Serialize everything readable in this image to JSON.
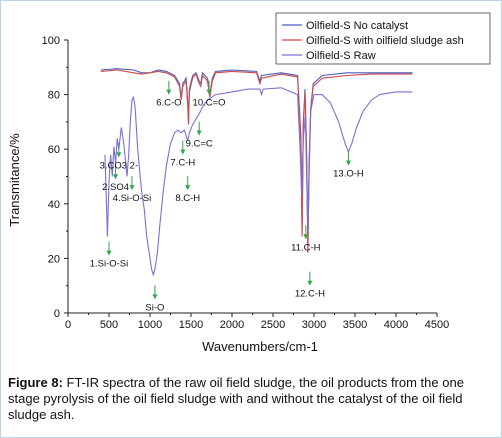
{
  "chart_data": {
    "type": "line",
    "xlabel": "Wavenumbers/cm-1",
    "ylabel": "Transmitance/%",
    "xlim": [
      0,
      4500
    ],
    "ylim": [
      0,
      100
    ],
    "xticks": [
      0,
      500,
      1000,
      1500,
      2000,
      2500,
      3000,
      3500,
      4000,
      4500
    ],
    "yticks": [
      0,
      20,
      40,
      60,
      80,
      100
    ],
    "grid": false,
    "legend_position": "top-right",
    "series": [
      {
        "name": "Oilfield-S No catalyst",
        "color": "#4a5fc1",
        "points": [
          [
            400,
            89
          ],
          [
            600,
            89.5
          ],
          [
            800,
            89
          ],
          [
            900,
            88
          ],
          [
            1000,
            88
          ],
          [
            1100,
            89
          ],
          [
            1200,
            88.5
          ],
          [
            1300,
            87
          ],
          [
            1360,
            84
          ],
          [
            1380,
            79
          ],
          [
            1400,
            84
          ],
          [
            1440,
            86
          ],
          [
            1460,
            78
          ],
          [
            1470,
            70
          ],
          [
            1480,
            82
          ],
          [
            1520,
            87
          ],
          [
            1560,
            88
          ],
          [
            1600,
            85
          ],
          [
            1620,
            84
          ],
          [
            1640,
            88
          ],
          [
            1700,
            86
          ],
          [
            1730,
            80
          ],
          [
            1760,
            86
          ],
          [
            1800,
            88.5
          ],
          [
            2000,
            89
          ],
          [
            2300,
            88.5
          ],
          [
            2340,
            85
          ],
          [
            2360,
            87
          ],
          [
            2600,
            88
          ],
          [
            2800,
            87
          ],
          [
            2840,
            65
          ],
          [
            2855,
            30
          ],
          [
            2870,
            70
          ],
          [
            2890,
            82
          ],
          [
            2910,
            60
          ],
          [
            2925,
            24
          ],
          [
            2940,
            55
          ],
          [
            2960,
            75
          ],
          [
            2990,
            84
          ],
          [
            3100,
            87
          ],
          [
            3400,
            88
          ],
          [
            3700,
            88
          ],
          [
            4000,
            88
          ],
          [
            4200,
            88
          ]
        ]
      },
      {
        "name": "Oilfield-S with oilfield sludge ash",
        "color": "#d04a4a",
        "points": [
          [
            400,
            88.5
          ],
          [
            600,
            89
          ],
          [
            800,
            88
          ],
          [
            900,
            87.5
          ],
          [
            1000,
            88
          ],
          [
            1100,
            88.5
          ],
          [
            1200,
            88
          ],
          [
            1300,
            86.5
          ],
          [
            1360,
            83
          ],
          [
            1380,
            78
          ],
          [
            1400,
            83
          ],
          [
            1440,
            85
          ],
          [
            1460,
            76
          ],
          [
            1470,
            69
          ],
          [
            1480,
            81
          ],
          [
            1520,
            86
          ],
          [
            1560,
            87.5
          ],
          [
            1600,
            84
          ],
          [
            1620,
            83
          ],
          [
            1640,
            87
          ],
          [
            1700,
            85
          ],
          [
            1730,
            79
          ],
          [
            1760,
            85
          ],
          [
            1800,
            88
          ],
          [
            2000,
            88.5
          ],
          [
            2300,
            88
          ],
          [
            2340,
            84
          ],
          [
            2360,
            86
          ],
          [
            2600,
            87.5
          ],
          [
            2800,
            86.5
          ],
          [
            2840,
            62
          ],
          [
            2855,
            28
          ],
          [
            2870,
            68
          ],
          [
            2890,
            81
          ],
          [
            2910,
            58
          ],
          [
            2925,
            22
          ],
          [
            2940,
            53
          ],
          [
            2960,
            74
          ],
          [
            2990,
            83
          ],
          [
            3100,
            86
          ],
          [
            3400,
            87
          ],
          [
            3700,
            87.5
          ],
          [
            4000,
            87.5
          ],
          [
            4200,
            87.5
          ]
        ]
      },
      {
        "name": "Oilfield-S Raw",
        "color": "#7b6fd6",
        "points": [
          [
            450,
            58
          ],
          [
            470,
            40
          ],
          [
            480,
            28
          ],
          [
            500,
            48
          ],
          [
            520,
            58
          ],
          [
            540,
            50
          ],
          [
            560,
            61
          ],
          [
            580,
            55
          ],
          [
            600,
            64
          ],
          [
            620,
            60
          ],
          [
            650,
            68
          ],
          [
            680,
            62
          ],
          [
            700,
            56
          ],
          [
            720,
            50
          ],
          [
            740,
            58
          ],
          [
            760,
            70
          ],
          [
            780,
            78
          ],
          [
            800,
            79
          ],
          [
            820,
            75
          ],
          [
            850,
            60
          ],
          [
            880,
            50
          ],
          [
            900,
            44
          ],
          [
            930,
            38
          ],
          [
            960,
            28
          ],
          [
            990,
            22
          ],
          [
            1020,
            16
          ],
          [
            1040,
            14
          ],
          [
            1060,
            16
          ],
          [
            1090,
            22
          ],
          [
            1120,
            32
          ],
          [
            1160,
            44
          ],
          [
            1200,
            54
          ],
          [
            1250,
            62
          ],
          [
            1300,
            66
          ],
          [
            1340,
            67
          ],
          [
            1380,
            66
          ],
          [
            1420,
            67
          ],
          [
            1460,
            63
          ],
          [
            1480,
            66
          ],
          [
            1520,
            69
          ],
          [
            1560,
            71
          ],
          [
            1600,
            73
          ],
          [
            1650,
            76
          ],
          [
            1700,
            78
          ],
          [
            1800,
            80
          ],
          [
            2000,
            81
          ],
          [
            2200,
            82
          ],
          [
            2340,
            82
          ],
          [
            2360,
            80
          ],
          [
            2380,
            82
          ],
          [
            2600,
            82.5
          ],
          [
            2800,
            80
          ],
          [
            2830,
            60
          ],
          [
            2850,
            43
          ],
          [
            2870,
            64
          ],
          [
            2895,
            72
          ],
          [
            2910,
            50
          ],
          [
            2925,
            30
          ],
          [
            2940,
            50
          ],
          [
            2960,
            74
          ],
          [
            3000,
            80
          ],
          [
            3100,
            80
          ],
          [
            3200,
            77
          ],
          [
            3300,
            70
          ],
          [
            3380,
            62
          ],
          [
            3420,
            59
          ],
          [
            3460,
            62
          ],
          [
            3520,
            68
          ],
          [
            3600,
            74
          ],
          [
            3700,
            78
          ],
          [
            3800,
            80
          ],
          [
            4000,
            81
          ],
          [
            4200,
            81
          ]
        ]
      }
    ],
    "annotations": [
      {
        "text": "1.Si-O-Si",
        "x": 500,
        "y": 21
      },
      {
        "text": "2.SO4",
        "x": 580,
        "y": 49
      },
      {
        "text": "3.CO3 2-",
        "x": 620,
        "y": 57
      },
      {
        "text": "4.Si-O-Si",
        "x": 780,
        "y": 45
      },
      {
        "text": "Si-O",
        "x": 1060,
        "y": 5
      },
      {
        "text": "6.C-O",
        "x": 1230,
        "y": 80
      },
      {
        "text": "7.C-H",
        "x": 1400,
        "y": 58
      },
      {
        "text": "8.C-H",
        "x": 1460,
        "y": 45
      },
      {
        "text": "9.C=C",
        "x": 1600,
        "y": 65
      },
      {
        "text": "10.C=O",
        "x": 1720,
        "y": 80
      },
      {
        "text": "11.C-H",
        "x": 2900,
        "y": 27
      },
      {
        "text": "12.C-H",
        "x": 2950,
        "y": 10
      },
      {
        "text": "13.O-H",
        "x": 3420,
        "y": 54
      }
    ]
  },
  "caption": {
    "label": "Figure 8:",
    "text": " FT-IR spectra of the raw oil field sludge, the oil products from the one stage pyrolysis of the oil field sludge with and without the catalyst of the oil field sludge ash."
  }
}
